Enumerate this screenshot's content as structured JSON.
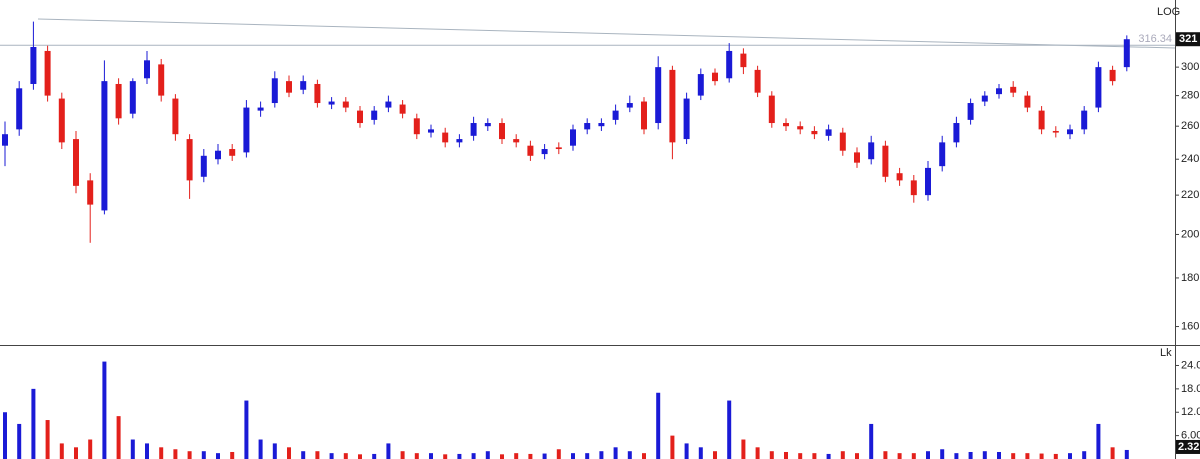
{
  "chart_data": [
    {
      "type": "candlestick",
      "scale_label": "LOG",
      "log_scale": true,
      "up_color": "#1a1ad6",
      "down_color": "#e3201b",
      "hline": 316.34,
      "open": [
        248,
        258,
        288,
        312,
        278,
        252,
        228,
        212,
        288,
        268,
        292,
        302,
        278,
        252,
        230,
        240,
        246,
        244,
        270,
        275,
        290,
        284,
        288,
        274,
        276,
        270,
        264,
        272,
        274,
        265,
        256,
        256,
        250,
        254,
        260,
        262,
        252,
        248,
        243,
        247,
        248,
        258,
        260,
        264,
        272,
        276,
        262,
        298,
        252,
        280,
        296,
        292,
        310,
        298,
        280,
        262,
        260,
        257,
        254,
        256,
        244,
        240,
        248,
        232,
        228,
        220,
        236,
        250,
        264,
        276,
        281,
        286,
        280,
        270,
        257,
        255,
        258,
        272,
        298,
        300
      ],
      "high": [
        263,
        290,
        335,
        316,
        282,
        257,
        232,
        305,
        292,
        292,
        312,
        306,
        281,
        255,
        246,
        249,
        249,
        277,
        276,
        297,
        294,
        294,
        291,
        279,
        279,
        273,
        273,
        280,
        277,
        268,
        261,
        259,
        255,
        266,
        265,
        265,
        255,
        251,
        249,
        250,
        261,
        265,
        265,
        274,
        280,
        279,
        308,
        301,
        282,
        299,
        299,
        318,
        314,
        301,
        283,
        265,
        263,
        260,
        261,
        259,
        247,
        254,
        251,
        235,
        231,
        239,
        254,
        266,
        278,
        283,
        288,
        290,
        283,
        273,
        260,
        261,
        273,
        304,
        301,
        324
      ],
      "low": [
        236,
        254,
        284,
        276,
        246,
        221,
        196,
        210,
        261,
        265,
        288,
        276,
        251,
        218,
        227,
        237,
        239,
        241,
        266,
        272,
        279,
        281,
        272,
        271,
        269,
        259,
        261,
        269,
        265,
        252,
        253,
        247,
        247,
        251,
        257,
        249,
        247,
        239,
        240,
        243,
        245,
        255,
        257,
        261,
        269,
        255,
        258,
        240,
        249,
        277,
        287,
        289,
        295,
        279,
        259,
        257,
        255,
        252,
        251,
        242,
        235,
        237,
        227,
        225,
        216,
        217,
        233,
        247,
        261,
        273,
        278,
        279,
        269,
        255,
        253,
        252,
        255,
        269,
        287,
        297
      ],
      "close": [
        255,
        285,
        315,
        280,
        250,
        225,
        215,
        290,
        265,
        290,
        305,
        280,
        255,
        228,
        242,
        245,
        242,
        272,
        272,
        292,
        282,
        290,
        275,
        276,
        272,
        262,
        270,
        276,
        268,
        255,
        258,
        250,
        252,
        262,
        262,
        252,
        250,
        242,
        246,
        246,
        258,
        262,
        262,
        270,
        275,
        258,
        300,
        250,
        278,
        295,
        290,
        312,
        300,
        282,
        262,
        260,
        258,
        255,
        258,
        245,
        238,
        250,
        230,
        228,
        220,
        235,
        250,
        262,
        275,
        280,
        285,
        282,
        272,
        258,
        256,
        258,
        270,
        300,
        290,
        321
      ],
      "ylim": [
        153,
        353
      ],
      "yticks": [
        160,
        180,
        200,
        220,
        240,
        260,
        280,
        300
      ]
    },
    {
      "type": "bar",
      "unit_label": "Lk",
      "values": [
        12,
        9,
        18,
        10,
        4,
        3,
        5,
        25,
        11,
        5,
        4,
        3,
        2.5,
        2,
        2,
        1.5,
        1.8,
        15,
        5,
        4,
        3,
        2,
        2,
        1.5,
        1.5,
        1.2,
        1.3,
        4,
        2,
        1.5,
        1.5,
        1.2,
        1.3,
        1.5,
        2,
        1.2,
        1.5,
        1.3,
        1.4,
        2.5,
        1.5,
        1.5,
        2,
        3,
        2,
        1.5,
        17,
        6,
        4,
        3,
        2,
        15,
        5,
        3,
        2,
        1.8,
        1.5,
        1.5,
        1.3,
        2,
        1.5,
        9,
        2,
        1.5,
        1.5,
        2,
        2.5,
        1.5,
        1.8,
        2,
        1.8,
        1.5,
        1.5,
        1.4,
        1.3,
        1.5,
        2,
        9,
        3,
        2.32
      ],
      "ylim": [
        0,
        29
      ],
      "yticks": [
        {
          "value": 6,
          "label": "6.00"
        },
        {
          "value": 12,
          "label": "12.00"
        },
        {
          "value": 18,
          "label": "18.00"
        },
        {
          "value": 24,
          "label": "24.00"
        }
      ]
    }
  ]
}
